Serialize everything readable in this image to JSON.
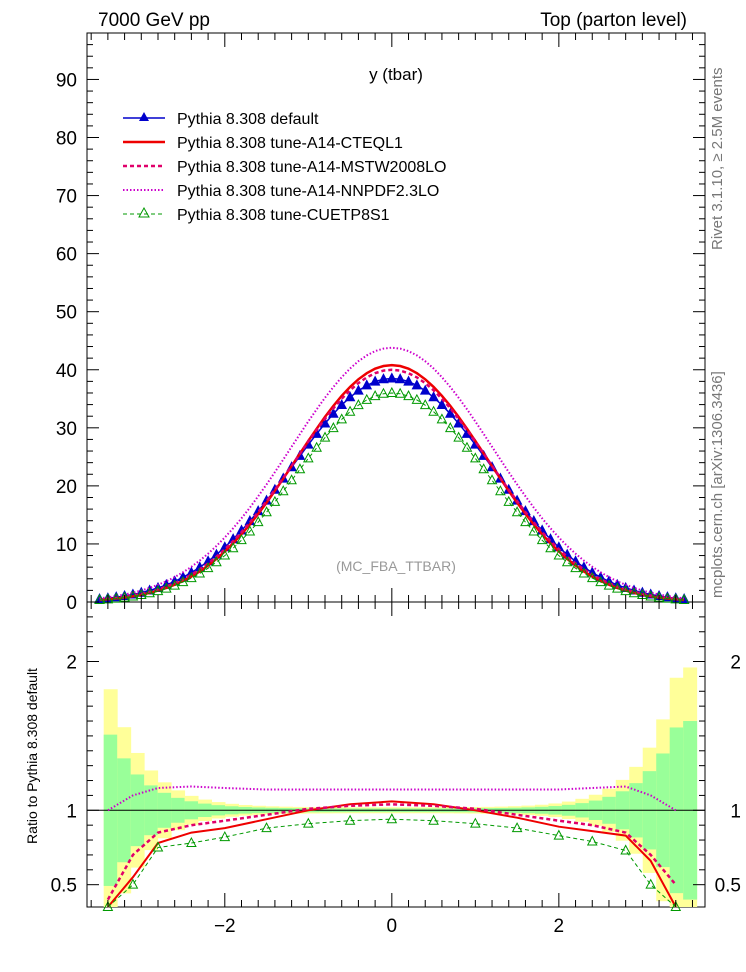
{
  "header": {
    "left": "7000 GeV pp",
    "right": "Top (parton level)"
  },
  "side_labels": {
    "rivet": "Rivet 3.1.10, ≥ 2.5M events",
    "mcplots": "mcplots.cern.ch [arXiv:1306.3436]"
  },
  "chart_data": [
    {
      "type": "line",
      "title": "y (tbar)",
      "watermark": "(MC_FBA_TTBAR)",
      "xlim": [
        -3.65,
        3.75
      ],
      "ylim": [
        0,
        98
      ],
      "yticks": [
        0,
        10,
        20,
        30,
        40,
        50,
        60,
        70,
        80,
        90
      ],
      "ytick_labels": [
        "0",
        "10",
        "20",
        "30",
        "40",
        "50",
        "60",
        "70",
        "80",
        "90"
      ],
      "legend_position": "top-left",
      "series": [
        {
          "name": "Pythia 8.308 default",
          "color": "#0000cc",
          "style": "solid-triangle",
          "peak": 38.5,
          "width": 1.45
        },
        {
          "name": "Pythia 8.308 tune-A14-CTEQL1",
          "color": "#ee0000",
          "style": "solid-line",
          "peak": 40.8,
          "width": 1.38
        },
        {
          "name": "Pythia 8.308 tune-A14-MSTW2008LO",
          "color": "#e0006a",
          "style": "dashed",
          "peak": 40.0,
          "width": 1.41
        },
        {
          "name": "Pythia 8.308 tune-A14-NNPDF2.3LO",
          "color": "#cc00cc",
          "style": "dotted",
          "peak": 43.8,
          "width": 1.47
        },
        {
          "name": "Pythia 8.308 tune-CUETP8S1",
          "color": "#009900",
          "style": "open-triangle",
          "peak": 36.0,
          "width": 1.4
        }
      ]
    },
    {
      "type": "line",
      "ylabel": "Ratio to Pythia 8.308 default",
      "xlim": [
        -3.65,
        3.75
      ],
      "ylim": [
        0.35,
        2.4
      ],
      "xticks": [
        -2,
        0,
        2
      ],
      "xtick_labels": [
        "−2",
        "0",
        "2"
      ],
      "yticks": [
        0.5,
        1,
        2
      ],
      "ytick_labels": [
        "0.5",
        "1",
        "2"
      ],
      "series": [
        {
          "name": "tune-A14-CTEQL1",
          "color": "#ee0000",
          "x": [
            -3.4,
            -3.1,
            -2.8,
            -2.4,
            -2.0,
            -1.5,
            -1.0,
            -0.5,
            0.0,
            0.5,
            1.0,
            1.5,
            2.0,
            2.4,
            2.8,
            3.1,
            3.4
          ],
          "values": [
            0.3,
            0.55,
            0.78,
            0.85,
            0.88,
            0.94,
            1.0,
            1.04,
            1.06,
            1.04,
            1.0,
            0.95,
            0.89,
            0.86,
            0.83,
            0.66,
            0.3
          ]
        },
        {
          "name": "tune-A14-MSTW2008LO",
          "color": "#e0006a",
          "x": [
            -3.4,
            -3.1,
            -2.8,
            -2.4,
            -2.0,
            -1.5,
            -1.0,
            -0.5,
            0.0,
            0.5,
            1.0,
            1.5,
            2.0,
            2.4,
            2.8,
            3.1,
            3.4
          ],
          "values": [
            0.4,
            0.7,
            0.85,
            0.9,
            0.93,
            0.97,
            1.01,
            1.03,
            1.04,
            1.03,
            1.01,
            0.97,
            0.93,
            0.9,
            0.85,
            0.7,
            0.5
          ]
        },
        {
          "name": "tune-A14-NNPDF2.3LO",
          "color": "#cc00cc",
          "x": [
            -3.4,
            -3.1,
            -2.8,
            -2.4,
            -2.0,
            -1.5,
            -1.0,
            -0.5,
            0.0,
            0.5,
            1.0,
            1.5,
            2.0,
            2.4,
            2.8,
            3.1,
            3.4
          ],
          "values": [
            1.0,
            1.1,
            1.15,
            1.16,
            1.15,
            1.14,
            1.14,
            1.14,
            1.14,
            1.14,
            1.14,
            1.14,
            1.14,
            1.15,
            1.16,
            1.1,
            1.0
          ]
        },
        {
          "name": "tune-CUETP8S1",
          "color": "#009900",
          "x": [
            -3.4,
            -3.1,
            -2.8,
            -2.4,
            -2.0,
            -1.5,
            -1.0,
            -0.5,
            0.0,
            0.5,
            1.0,
            1.5,
            2.0,
            2.4,
            2.8,
            3.1,
            3.4
          ],
          "values": [
            0.3,
            0.5,
            0.75,
            0.78,
            0.82,
            0.88,
            0.91,
            0.93,
            0.94,
            0.93,
            0.91,
            0.88,
            0.83,
            0.79,
            0.73,
            0.5,
            0.3
          ]
        }
      ]
    }
  ]
}
